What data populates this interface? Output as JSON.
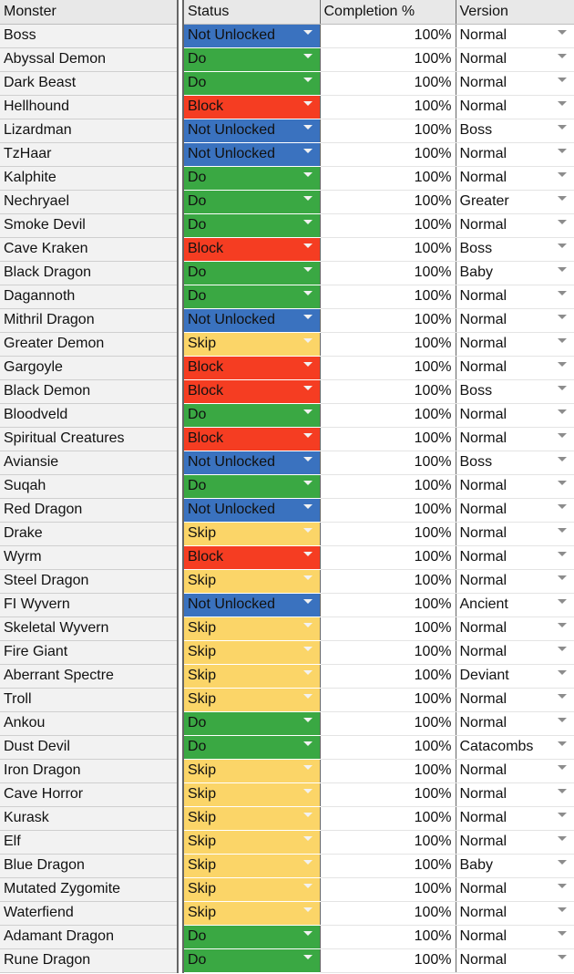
{
  "headers": {
    "monster": "Monster",
    "status": "Status",
    "completion": "Completion %",
    "version": "Version"
  },
  "status_colors": {
    "Do": "#3aa843",
    "Block": "#f53d22",
    "Skip": "#fbd568",
    "Not Unlocked": "#3a72bf"
  },
  "rows": [
    {
      "monster": "Boss",
      "status": "Not Unlocked",
      "completion": "100%",
      "version": "Normal"
    },
    {
      "monster": "Abyssal Demon",
      "status": "Do",
      "completion": "100%",
      "version": "Normal"
    },
    {
      "monster": "Dark Beast",
      "status": "Do",
      "completion": "100%",
      "version": "Normal"
    },
    {
      "monster": "Hellhound",
      "status": "Block",
      "completion": "100%",
      "version": "Normal"
    },
    {
      "monster": "Lizardman",
      "status": "Not Unlocked",
      "completion": "100%",
      "version": "Boss"
    },
    {
      "monster": "TzHaar",
      "status": "Not Unlocked",
      "completion": "100%",
      "version": "Normal"
    },
    {
      "monster": "Kalphite",
      "status": "Do",
      "completion": "100%",
      "version": "Normal"
    },
    {
      "monster": "Nechryael",
      "status": "Do",
      "completion": "100%",
      "version": "Greater"
    },
    {
      "monster": "Smoke Devil",
      "status": "Do",
      "completion": "100%",
      "version": "Normal"
    },
    {
      "monster": "Cave Kraken",
      "status": "Block",
      "completion": "100%",
      "version": "Boss"
    },
    {
      "monster": "Black Dragon",
      "status": "Do",
      "completion": "100%",
      "version": "Baby"
    },
    {
      "monster": "Dagannoth",
      "status": "Do",
      "completion": "100%",
      "version": "Normal"
    },
    {
      "monster": "Mithril Dragon",
      "status": "Not Unlocked",
      "completion": "100%",
      "version": "Normal"
    },
    {
      "monster": "Greater Demon",
      "status": "Skip",
      "completion": "100%",
      "version": "Normal"
    },
    {
      "monster": "Gargoyle",
      "status": "Block",
      "completion": "100%",
      "version": "Normal"
    },
    {
      "monster": "Black Demon",
      "status": "Block",
      "completion": "100%",
      "version": "Boss"
    },
    {
      "monster": "Bloodveld",
      "status": "Do",
      "completion": "100%",
      "version": "Normal"
    },
    {
      "monster": "Spiritual Creatures",
      "status": "Block",
      "completion": "100%",
      "version": "Normal"
    },
    {
      "monster": "Aviansie",
      "status": "Not Unlocked",
      "completion": "100%",
      "version": "Boss"
    },
    {
      "monster": "Suqah",
      "status": "Do",
      "completion": "100%",
      "version": "Normal"
    },
    {
      "monster": "Red Dragon",
      "status": "Not Unlocked",
      "completion": "100%",
      "version": "Normal"
    },
    {
      "monster": "Drake",
      "status": "Skip",
      "completion": "100%",
      "version": "Normal"
    },
    {
      "monster": "Wyrm",
      "status": "Block",
      "completion": "100%",
      "version": "Normal"
    },
    {
      "monster": "Steel Dragon",
      "status": "Skip",
      "completion": "100%",
      "version": "Normal"
    },
    {
      "monster": "FI Wyvern",
      "status": "Not Unlocked",
      "completion": "100%",
      "version": "Ancient"
    },
    {
      "monster": "Skeletal Wyvern",
      "status": "Skip",
      "completion": "100%",
      "version": "Normal"
    },
    {
      "monster": "Fire Giant",
      "status": "Skip",
      "completion": "100%",
      "version": "Normal"
    },
    {
      "monster": "Aberrant Spectre",
      "status": "Skip",
      "completion": "100%",
      "version": "Deviant"
    },
    {
      "monster": "Troll",
      "status": "Skip",
      "completion": "100%",
      "version": "Normal"
    },
    {
      "monster": "Ankou",
      "status": "Do",
      "completion": "100%",
      "version": "Normal"
    },
    {
      "monster": "Dust Devil",
      "status": "Do",
      "completion": "100%",
      "version": "Catacombs"
    },
    {
      "monster": "Iron Dragon",
      "status": "Skip",
      "completion": "100%",
      "version": "Normal"
    },
    {
      "monster": "Cave Horror",
      "status": "Skip",
      "completion": "100%",
      "version": "Normal"
    },
    {
      "monster": "Kurask",
      "status": "Skip",
      "completion": "100%",
      "version": "Normal"
    },
    {
      "monster": "Elf",
      "status": "Skip",
      "completion": "100%",
      "version": "Normal"
    },
    {
      "monster": "Blue Dragon",
      "status": "Skip",
      "completion": "100%",
      "version": "Baby"
    },
    {
      "monster": "Mutated Zygomite",
      "status": "Skip",
      "completion": "100%",
      "version": "Normal"
    },
    {
      "monster": "Waterfiend",
      "status": "Skip",
      "completion": "100%",
      "version": "Normal"
    },
    {
      "monster": "Adamant Dragon",
      "status": "Do",
      "completion": "100%",
      "version": "Normal"
    },
    {
      "monster": "Rune Dragon",
      "status": "Do",
      "completion": "100%",
      "version": "Normal"
    }
  ]
}
